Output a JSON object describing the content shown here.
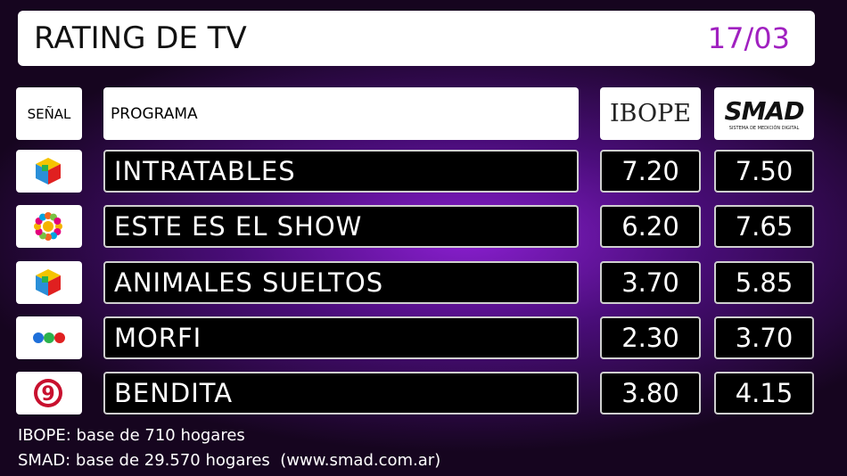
{
  "header": {
    "title": "RATING DE TV",
    "date": "17/03"
  },
  "table": {
    "headers": {
      "channel": "SEÑAL",
      "program": "PROGRAMA",
      "ibope": "IBOPE",
      "smad": "SMAD",
      "smad_tagline": "SISTEMA DE MEDICIÓN DIGITAL"
    },
    "rows": [
      {
        "logo": "telefe",
        "program": "INTRATABLES",
        "ibope": "7.20",
        "smad": "7.50"
      },
      {
        "logo": "trece",
        "program": "ESTE ES EL SHOW",
        "ibope": "6.20",
        "smad": "7.65"
      },
      {
        "logo": "telefe",
        "program": "ANIMALES SUELTOS",
        "ibope": "3.70",
        "smad": "5.85"
      },
      {
        "logo": "dots",
        "program": "MORFI",
        "ibope": "2.30",
        "smad": "3.70"
      },
      {
        "logo": "nueve",
        "logo_label": "9",
        "program": "BENDITA",
        "ibope": "3.80",
        "smad": "4.15"
      }
    ]
  },
  "footer": [
    "IBOPE: base de 710 hogares",
    "SMAD: base de 29.570 hogares  (www.smad.com.ar)"
  ]
}
